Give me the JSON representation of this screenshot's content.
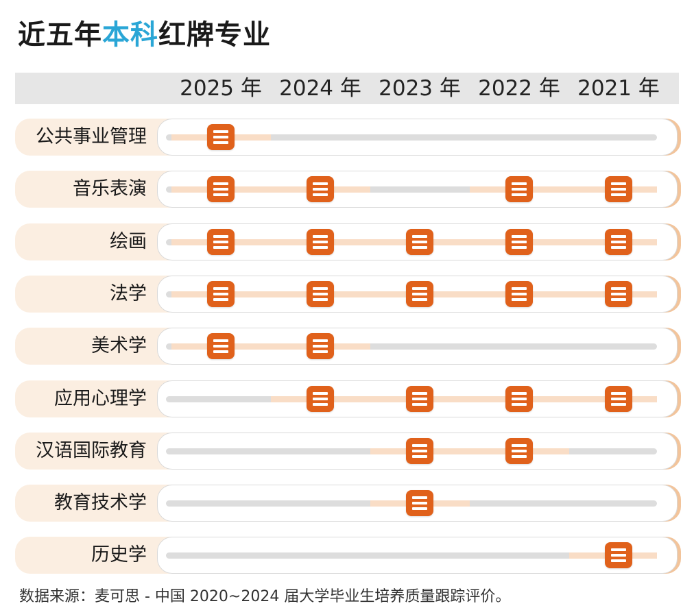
{
  "title": {
    "prefix": "近五年",
    "highlight": "本科",
    "suffix": "红牌专业"
  },
  "colors": {
    "highlight": "#2aa6d6",
    "badge": "#e0611b",
    "active_track": "#f9ddc6",
    "inactive_track": "#dddddd",
    "label_bg": "#fbeee1"
  },
  "chart_data": {
    "type": "table",
    "columns": [
      "2025 年",
      "2024 年",
      "2023 年",
      "2022 年",
      "2021 年"
    ],
    "rows": [
      {
        "label": "公共事业管理",
        "flags": [
          1,
          0,
          0,
          0,
          0
        ]
      },
      {
        "label": "音乐表演",
        "flags": [
          1,
          1,
          0,
          1,
          1
        ]
      },
      {
        "label": "绘画",
        "flags": [
          1,
          1,
          1,
          1,
          1
        ]
      },
      {
        "label": "法学",
        "flags": [
          1,
          1,
          1,
          1,
          1
        ]
      },
      {
        "label": "美术学",
        "flags": [
          1,
          1,
          0,
          0,
          0
        ]
      },
      {
        "label": "应用心理学",
        "flags": [
          0,
          1,
          1,
          1,
          1
        ]
      },
      {
        "label": "汉语国际教育",
        "flags": [
          0,
          0,
          1,
          1,
          0
        ]
      },
      {
        "label": "教育技术学",
        "flags": [
          0,
          0,
          1,
          0,
          0
        ]
      },
      {
        "label": "历史学",
        "flags": [
          0,
          0,
          0,
          0,
          1
        ]
      }
    ]
  },
  "source": "数据来源：麦可思 - 中国 2020~2024 届大学毕业生培养质量跟踪评价。"
}
